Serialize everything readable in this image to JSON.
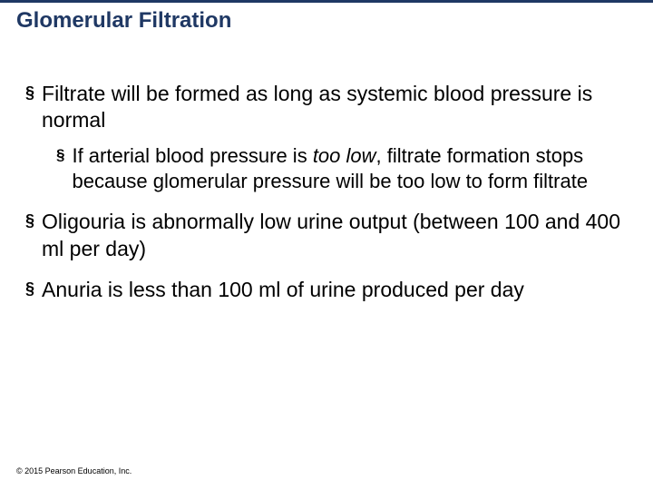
{
  "header": {
    "title": "Glomerular Filtration",
    "title_color": "#1f3864",
    "line_color": "#1f3864"
  },
  "bullets": {
    "b1": "Filtrate will be formed as long as systemic blood pressure is normal",
    "b1a_pre": "If arterial blood pressure is ",
    "b1a_em": "too low",
    "b1a_post": ", filtrate formation stops because glomerular pressure will be too low to form filtrate",
    "b2": "Oligouria is abnormally low urine output (between 100 and 400 ml per day)",
    "b3": "Anuria is less than 100 ml of urine produced per day"
  },
  "footer": {
    "copyright": "© 2015 Pearson Education, Inc."
  }
}
